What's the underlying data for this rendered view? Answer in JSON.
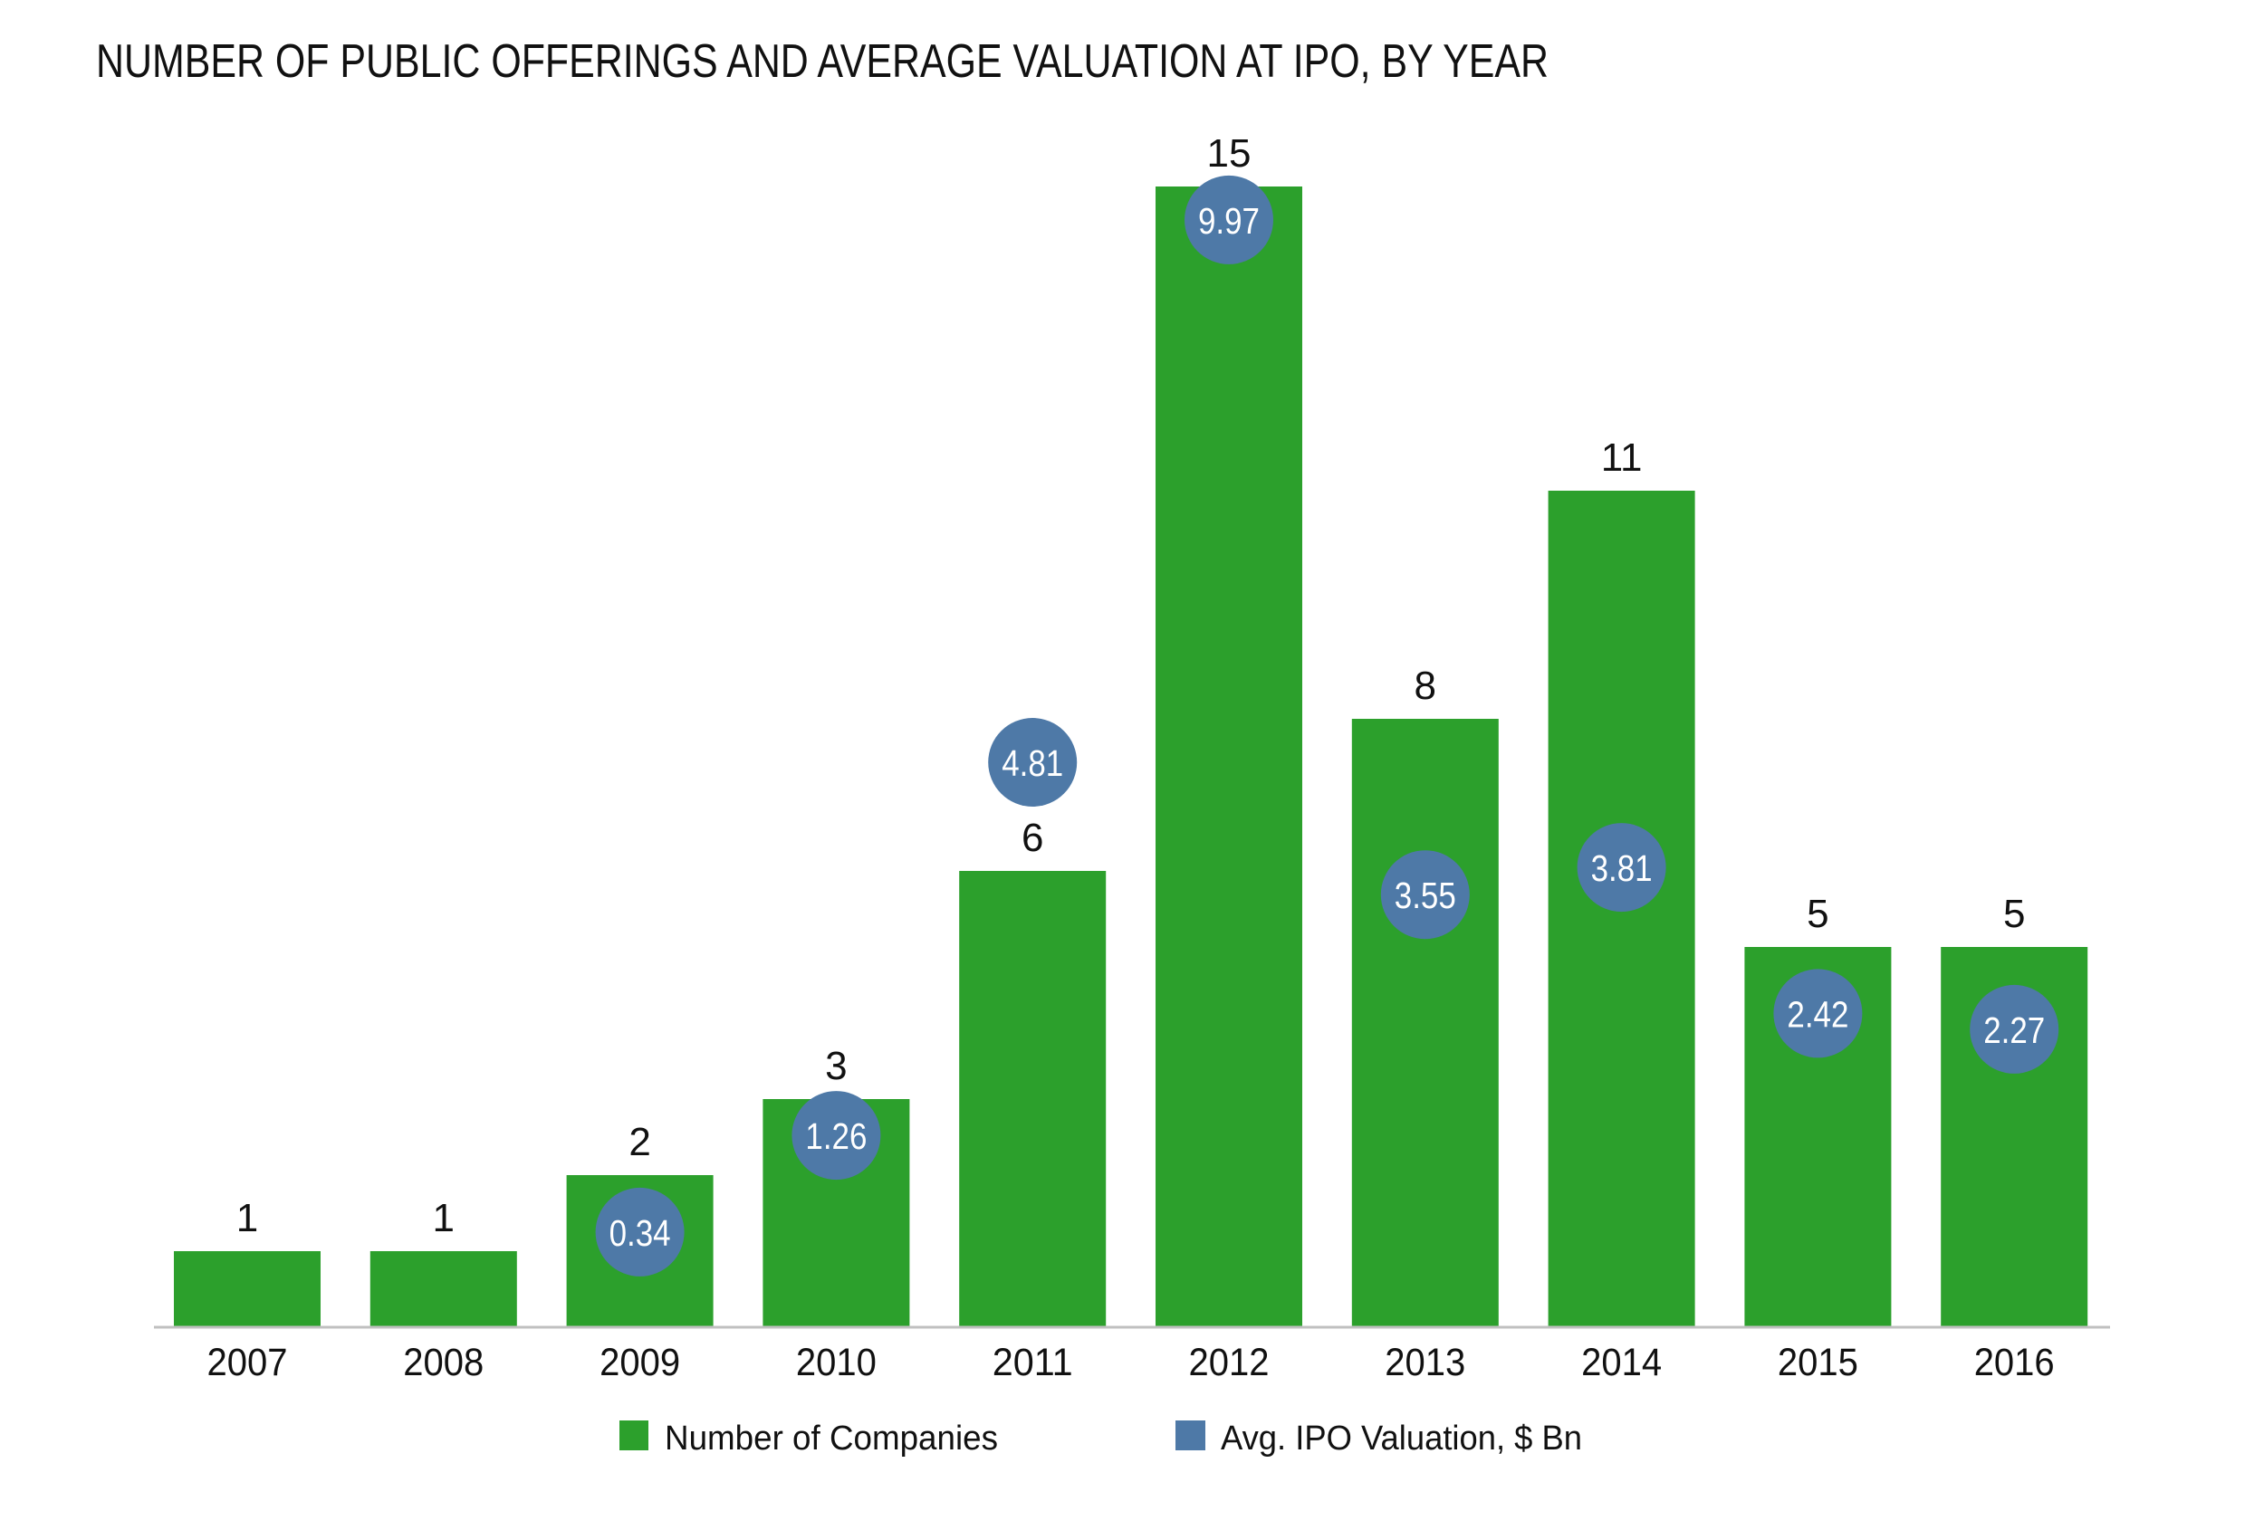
{
  "chart_data": {
    "type": "bar",
    "title": "NUMBER OF PUBLIC OFFERINGS AND AVERAGE VALUATION AT IPO, BY YEAR",
    "xlabel": "",
    "ylabel": "",
    "categories": [
      "2007",
      "2008",
      "2009",
      "2010",
      "2011",
      "2012",
      "2013",
      "2014",
      "2015",
      "2016"
    ],
    "series": [
      {
        "name": "Number of Companies",
        "kind": "bar",
        "color": "#2ca02c",
        "values": [
          1,
          1,
          2,
          3,
          6,
          15,
          8,
          11,
          5,
          5
        ],
        "labels": [
          "1",
          "1",
          "2",
          "3",
          "6",
          "15",
          "8",
          "11",
          "5",
          "5"
        ]
      },
      {
        "name": "Avg. IPO Valuation, $ Bn",
        "kind": "bubble",
        "color": "#4e79a7",
        "values": [
          null,
          null,
          0.34,
          1.26,
          4.81,
          9.97,
          3.55,
          3.81,
          2.42,
          2.27
        ],
        "labels": [
          "",
          "",
          "0.34",
          "1.26",
          "4.81",
          "9.97",
          "3.55",
          "3.81",
          "2.42",
          "2.27"
        ]
      }
    ],
    "ylim_count": [
      0,
      15
    ],
    "grid": false,
    "legend": "bottom-center",
    "axis_color": "#c0c0c0"
  }
}
